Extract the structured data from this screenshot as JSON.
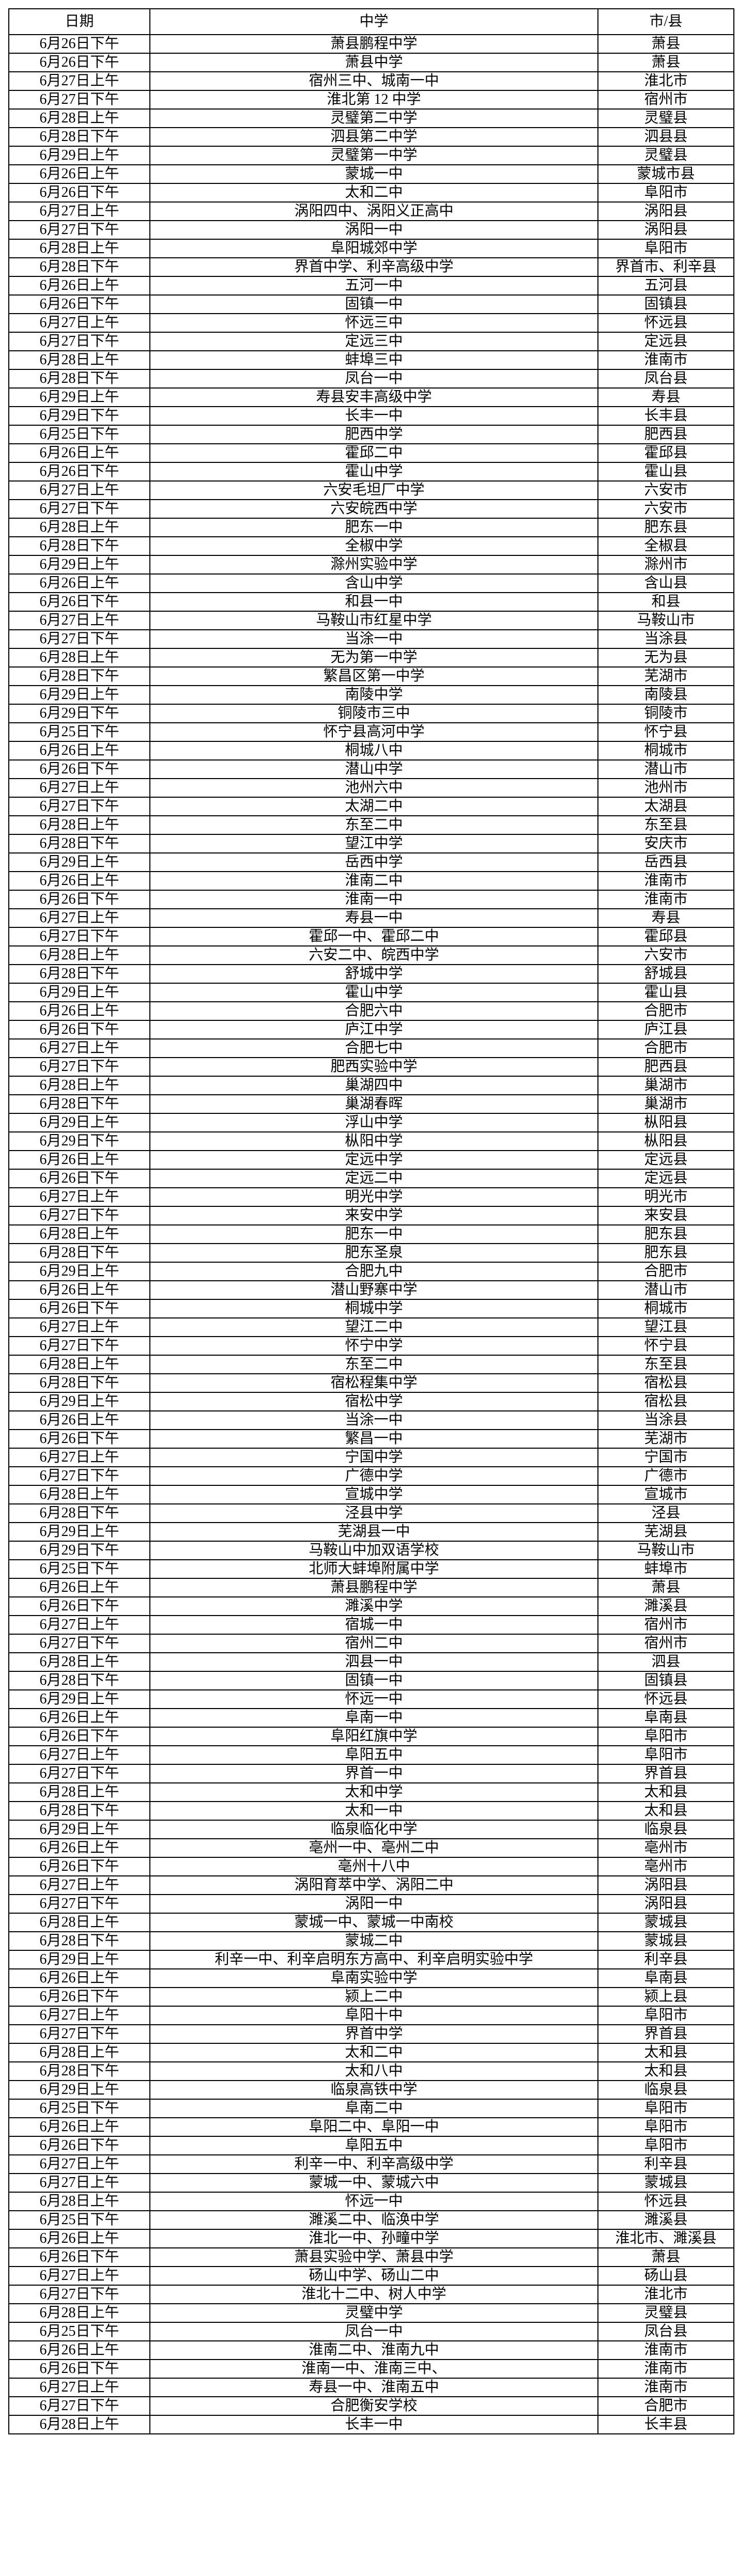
{
  "table": {
    "headers": [
      "日期",
      "中学",
      "市/县"
    ],
    "rows": [
      [
        "6月26日下午",
        "萧县鹏程中学",
        "萧县"
      ],
      [
        "6月26日下午",
        "萧县中学",
        "萧县"
      ],
      [
        "6月27日上午",
        "宿州三中、城南一中",
        "淮北市"
      ],
      [
        "6月27日下午",
        "淮北第 12 中学",
        "宿州市"
      ],
      [
        "6月28日上午",
        "灵璧第二中学",
        "灵璧县"
      ],
      [
        "6月28日下午",
        "泗县第二中学",
        "泗县县"
      ],
      [
        "6月29日上午",
        "灵璧第一中学",
        "灵璧县"
      ],
      [
        "6月26日上午",
        "蒙城一中",
        "蒙城市县"
      ],
      [
        "6月26日下午",
        "太和二中",
        "阜阳市"
      ],
      [
        "6月27日上午",
        "涡阳四中、涡阳义正高中",
        "涡阳县"
      ],
      [
        "6月27日下午",
        "涡阳一中",
        "涡阳县"
      ],
      [
        "6月28日上午",
        "阜阳城郊中学",
        "阜阳市"
      ],
      [
        "6月28日下午",
        "界首中学、利辛高级中学",
        "界首市、利辛县"
      ],
      [
        "6月26日上午",
        "五河一中",
        "五河县"
      ],
      [
        "6月26日下午",
        "固镇一中",
        "固镇县"
      ],
      [
        "6月27日上午",
        "怀远三中",
        "怀远县"
      ],
      [
        "6月27日下午",
        "定远三中",
        "定远县"
      ],
      [
        "6月28日上午",
        "蚌埠三中",
        "淮南市"
      ],
      [
        "6月28日下午",
        "凤台一中",
        "凤台县"
      ],
      [
        "6月29日上午",
        "寿县安丰高级中学",
        "寿县"
      ],
      [
        "6月29日下午",
        "长丰一中",
        "长丰县"
      ],
      [
        "6月25日下午",
        "肥西中学",
        "肥西县"
      ],
      [
        "6月26日上午",
        "霍邱二中",
        "霍邱县"
      ],
      [
        "6月26日下午",
        "霍山中学",
        "霍山县"
      ],
      [
        "6月27日上午",
        "六安毛坦厂中学",
        "六安市"
      ],
      [
        "6月27日下午",
        "六安皖西中学",
        "六安市"
      ],
      [
        "6月28日上午",
        "肥东一中",
        "肥东县"
      ],
      [
        "6月28日下午",
        "全椒中学",
        "全椒县"
      ],
      [
        "6月29日上午",
        "滁州实验中学",
        "滁州市"
      ],
      [
        "6月26日上午",
        "含山中学",
        "含山县"
      ],
      [
        "6月26日下午",
        "和县一中",
        "和县"
      ],
      [
        "6月27日上午",
        "马鞍山市红星中学",
        "马鞍山市"
      ],
      [
        "6月27日下午",
        "当涂一中",
        "当涂县"
      ],
      [
        "6月28日上午",
        "无为第一中学",
        "无为县"
      ],
      [
        "6月28日下午",
        "繁昌区第一中学",
        "芜湖市"
      ],
      [
        "6月29日上午",
        "南陵中学",
        "南陵县"
      ],
      [
        "6月29日下午",
        "铜陵市三中",
        "铜陵市"
      ],
      [
        "6月25日下午",
        "怀宁县高河中学",
        "怀宁县"
      ],
      [
        "6月26日上午",
        "桐城八中",
        "桐城市"
      ],
      [
        "6月26日下午",
        "潜山中学",
        "潜山市"
      ],
      [
        "6月27日上午",
        "池州六中",
        "池州市"
      ],
      [
        "6月27日下午",
        "太湖二中",
        "太湖县"
      ],
      [
        "6月28日上午",
        "东至二中",
        "东至县"
      ],
      [
        "6月28日下午",
        "望江中学",
        "安庆市"
      ],
      [
        "6月29日上午",
        "岳西中学",
        "岳西县"
      ],
      [
        "6月26日上午",
        "淮南二中",
        "淮南市"
      ],
      [
        "6月26日下午",
        "淮南一中",
        "淮南市"
      ],
      [
        "6月27日上午",
        "寿县一中",
        "寿县"
      ],
      [
        "6月27日下午",
        "霍邱一中、霍邱二中",
        "霍邱县"
      ],
      [
        "6月28日上午",
        "六安二中、皖西中学",
        "六安市"
      ],
      [
        "6月28日下午",
        "舒城中学",
        "舒城县"
      ],
      [
        "6月29日上午",
        "霍山中学",
        "霍山县"
      ],
      [
        "6月26日上午",
        "合肥六中",
        "合肥市"
      ],
      [
        "6月26日下午",
        "庐江中学",
        "庐江县"
      ],
      [
        "6月27日上午",
        "合肥七中",
        "合肥市"
      ],
      [
        "6月27日下午",
        "肥西实验中学",
        "肥西县"
      ],
      [
        "6月28日上午",
        "巢湖四中",
        "巢湖市"
      ],
      [
        "6月28日下午",
        "巢湖春晖",
        "巢湖市"
      ],
      [
        "6月29日上午",
        "浮山中学",
        "枞阳县"
      ],
      [
        "6月29日下午",
        "枞阳中学",
        "枞阳县"
      ],
      [
        "6月26日上午",
        "定远中学",
        "定远县"
      ],
      [
        "6月26日下午",
        "定远二中",
        "定远县"
      ],
      [
        "6月27日上午",
        "明光中学",
        "明光市"
      ],
      [
        "6月27日下午",
        "来安中学",
        "来安县"
      ],
      [
        "6月28日上午",
        "肥东一中",
        "肥东县"
      ],
      [
        "6月28日下午",
        "肥东圣泉",
        "肥东县"
      ],
      [
        "6月29日上午",
        "合肥九中",
        "合肥市"
      ],
      [
        "6月26日上午",
        "潜山野寨中学",
        "潜山市"
      ],
      [
        "6月26日下午",
        "桐城中学",
        "桐城市"
      ],
      [
        "6月27日上午",
        "望江二中",
        "望江县"
      ],
      [
        "6月27日下午",
        "怀宁中学",
        "怀宁县"
      ],
      [
        "6月28日上午",
        "东至二中",
        "东至县"
      ],
      [
        "6月28日下午",
        "宿松程集中学",
        "宿松县"
      ],
      [
        "6月29日上午",
        "宿松中学",
        "宿松县"
      ],
      [
        "6月26日上午",
        "当涂一中",
        "当涂县"
      ],
      [
        "6月26日下午",
        "繁昌一中",
        "芜湖市"
      ],
      [
        "6月27日上午",
        "宁国中学",
        "宁国市"
      ],
      [
        "6月27日下午",
        "广德中学",
        "广德市"
      ],
      [
        "6月28日上午",
        "宣城中学",
        "宣城市"
      ],
      [
        "6月28日下午",
        "泾县中学",
        "泾县"
      ],
      [
        "6月29日上午",
        "芜湖县一中",
        "芜湖县"
      ],
      [
        "6月29日下午",
        "马鞍山中加双语学校",
        "马鞍山市"
      ],
      [
        "6月25日下午",
        "北师大蚌埠附属中学",
        "蚌埠市"
      ],
      [
        "6月26日上午",
        "萧县鹏程中学",
        "萧县"
      ],
      [
        "6月26日下午",
        "濉溪中学",
        "濉溪县"
      ],
      [
        "6月27日上午",
        "宿城一中",
        "宿州市"
      ],
      [
        "6月27日下午",
        "宿州二中",
        "宿州市"
      ],
      [
        "6月28日上午",
        "泗县一中",
        "泗县"
      ],
      [
        "6月28日下午",
        "固镇一中",
        "固镇县"
      ],
      [
        "6月29日上午",
        "怀远一中",
        "怀远县"
      ],
      [
        "6月26日上午",
        "阜南一中",
        "阜南县"
      ],
      [
        "6月26日下午",
        "阜阳红旗中学",
        "阜阳市"
      ],
      [
        "6月27日上午",
        "阜阳五中",
        "阜阳市"
      ],
      [
        "6月27日下午",
        "界首一中",
        "界首县"
      ],
      [
        "6月28日上午",
        "太和中学",
        "太和县"
      ],
      [
        "6月28日下午",
        "太和一中",
        "太和县"
      ],
      [
        "6月29日上午",
        "临泉临化中学",
        "临泉县"
      ],
      [
        "6月26日上午",
        "亳州一中、亳州二中",
        "亳州市"
      ],
      [
        "6月26日下午",
        "亳州十八中",
        "亳州市"
      ],
      [
        "6月27日上午",
        "涡阳育萃中学、涡阳二中",
        "涡阳县"
      ],
      [
        "6月27日下午",
        "涡阳一中",
        "涡阳县"
      ],
      [
        "6月28日上午",
        "蒙城一中、蒙城一中南校",
        "蒙城县"
      ],
      [
        "6月28日下午",
        "蒙城二中",
        "蒙城县"
      ],
      [
        "6月29日上午",
        "利辛一中、利辛启明东方高中、利辛启明实验中学",
        "利辛县"
      ],
      [
        "6月26日上午",
        "阜南实验中学",
        "阜南县"
      ],
      [
        "6月26日下午",
        "颍上二中",
        "颍上县"
      ],
      [
        "6月27日上午",
        "阜阳十中",
        "阜阳市"
      ],
      [
        "6月27日下午",
        "界首中学",
        "界首县"
      ],
      [
        "6月28日上午",
        "太和二中",
        "太和县"
      ],
      [
        "6月28日下午",
        "太和八中",
        "太和县"
      ],
      [
        "6月29日上午",
        "临泉高铁中学",
        "临泉县"
      ],
      [
        "6月25日下午",
        "阜南二中",
        "阜阳市"
      ],
      [
        "6月26日上午",
        "阜阳二中、阜阳一中",
        "阜阳市"
      ],
      [
        "6月26日下午",
        "阜阳五中",
        "阜阳市"
      ],
      [
        "6月27日上午",
        "利辛一中、利辛高级中学",
        "利辛县"
      ],
      [
        "6月27日上午",
        "蒙城一中、蒙城六中",
        "蒙城县"
      ],
      [
        "6月28日上午",
        "怀远一中",
        "怀远县"
      ],
      [
        "6月25日下午",
        "濉溪二中、临涣中学",
        "濉溪县"
      ],
      [
        "6月26日上午",
        "淮北一中、孙疃中学",
        "淮北市、濉溪县"
      ],
      [
        "6月26日下午",
        "萧县实验中学、萧县中学",
        "萧县"
      ],
      [
        "6月27日上午",
        "砀山中学、砀山二中",
        "砀山县"
      ],
      [
        "6月27日下午",
        "淮北十二中、树人中学",
        "淮北市"
      ],
      [
        "6月28日上午",
        "灵璧中学",
        "灵璧县"
      ],
      [
        "6月25日下午",
        "凤台一中",
        "凤台县"
      ],
      [
        "6月26日上午",
        "淮南二中、淮南九中",
        "淮南市"
      ],
      [
        "6月26日下午",
        "淮南一中、淮南三中、",
        "淮南市"
      ],
      [
        "6月27日上午",
        "寿县一中、淮南五中",
        "淮南市"
      ],
      [
        "6月27日下午",
        "合肥衡安学校",
        "合肥市"
      ],
      [
        "6月28日上午",
        "长丰一中",
        "长丰县"
      ]
    ]
  }
}
